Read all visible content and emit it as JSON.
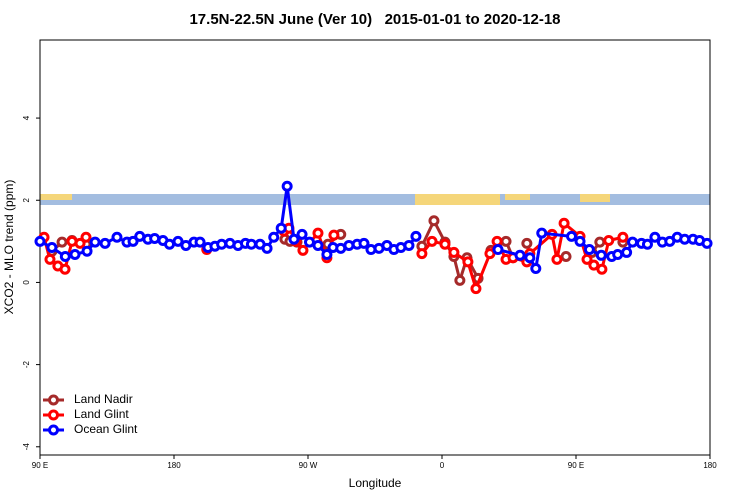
{
  "chart_data": {
    "type": "line",
    "title": "17.5N-22.5N June (Ver 10)   2015-01-01 to 2020-12-18",
    "xlabel": "Longitude",
    "ylabel": "XCO2 - MLO trend (ppm)",
    "xlim": [
      90,
      540
    ],
    "ylim": [
      -4.2,
      5.9
    ],
    "xticks": [
      {
        "value": 90,
        "label": "90 E"
      },
      180,
      {
        "value": 270,
        "label": "90 W"
      },
      {
        "value": 360,
        "label": "0"
      },
      {
        "value": 450,
        "label": "90 E"
      },
      {
        "value": 540,
        "label": "180"
      }
    ],
    "yticks": [
      -4,
      -2,
      0,
      2,
      4
    ],
    "legend": "bottomleft",
    "series": [
      {
        "name": "Land Nadir",
        "color": "#a52a2a",
        "x": [
          98,
          104.8,
          111.5,
          120.9,
          null,
          254.5,
          257.9,
          262.6,
          null,
          283.4,
          292,
          null,
          346.5,
          354.6,
          362,
          368,
          372,
          376.8,
          384.2,
          null,
          392.9,
          403,
          407.7,
          null,
          417,
          null,
          443.3,
          null,
          460.7,
          466,
          null,
          481.5
        ],
        "values": [
          0.76,
          0.98,
          1.02,
          0.93,
          null,
          1.05,
          1.0,
          0.98,
          null,
          0.93,
          1.17,
          null,
          0.88,
          1.5,
          0.98,
          0.63,
          0.05,
          0.6,
          0.1,
          null,
          0.78,
          1.0,
          0.6,
          null,
          0.95,
          null,
          0.63,
          null,
          0.73,
          0.98,
          null,
          0.98
        ]
      },
      {
        "name": "Land Glint",
        "color": "#ff0000",
        "x": [
          92.7,
          96.7,
          102,
          106.8,
          111.5,
          116.9,
          120.9,
          null,
          202,
          null,
          253.9,
          257.2,
          262,
          266.6,
          276.7,
          282.7,
          287.4,
          null,
          346.5,
          353.3,
          362,
          368,
          377.4,
          382.8,
          392.2,
          397,
          403,
          407.7,
          417,
          419,
          433.9,
          437.2,
          442,
          452.7,
          457.4,
          462,
          467.4,
          472,
          481.5
        ],
        "values": [
          1.1,
          0.56,
          0.4,
          0.32,
          1.0,
          0.95,
          1.1,
          null,
          0.8,
          null,
          1.25,
          1.32,
          1.0,
          0.78,
          1.2,
          0.6,
          1.15,
          null,
          0.7,
          1.0,
          0.93,
          0.73,
          0.5,
          -0.15,
          0.7,
          1.0,
          0.56,
          0.6,
          0.5,
          0.7,
          1.17,
          0.56,
          1.44,
          1.12,
          0.56,
          0.42,
          0.32,
          1.02,
          1.1
        ]
      },
      {
        "name": "Ocean Glint",
        "color": "#0000ff",
        "x": [
          90,
          98,
          107,
          113.5,
          121.6,
          127,
          133.7,
          141.7,
          148.4,
          152.5,
          157,
          162.5,
          167,
          172.6,
          177,
          182.7,
          188,
          193.4,
          197.5,
          202.8,
          207.5,
          212,
          217.6,
          223,
          228,
          232,
          237.8,
          242.5,
          247,
          252,
          256,
          260.6,
          266,
          271,
          276.7,
          282.7,
          286.8,
          292,
          297.5,
          303,
          307.6,
          312.3,
          317.7,
          323,
          327.7,
          332.4,
          337.8,
          342.5,
          null,
          397.6,
          412.4,
          419,
          423,
          427,
          447,
          452.7,
          459,
          467,
          474,
          478,
          484,
          488,
          494,
          498,
          503,
          508,
          513,
          518,
          523,
          528.6,
          533,
          538
        ],
        "values": [
          1.0,
          0.85,
          0.63,
          0.68,
          0.76,
          0.98,
          0.95,
          1.1,
          0.98,
          1.0,
          1.12,
          1.05,
          1.07,
          1.02,
          0.93,
          1.0,
          0.9,
          0.98,
          0.98,
          0.85,
          0.88,
          0.93,
          0.95,
          0.9,
          0.95,
          0.93,
          0.93,
          0.83,
          1.1,
          1.32,
          2.34,
          1.05,
          1.17,
          0.98,
          0.9,
          0.68,
          0.85,
          0.83,
          0.9,
          0.93,
          0.95,
          0.8,
          0.83,
          0.9,
          0.8,
          0.85,
          0.9,
          1.12,
          null,
          0.8,
          0.66,
          0.6,
          0.34,
          1.2,
          1.12,
          1.0,
          0.8,
          0.66,
          0.63,
          0.68,
          0.73,
          0.98,
          0.95,
          0.93,
          1.1,
          0.98,
          1.0,
          1.1,
          1.05,
          1.05,
          1.02,
          0.95
        ]
      }
    ]
  }
}
